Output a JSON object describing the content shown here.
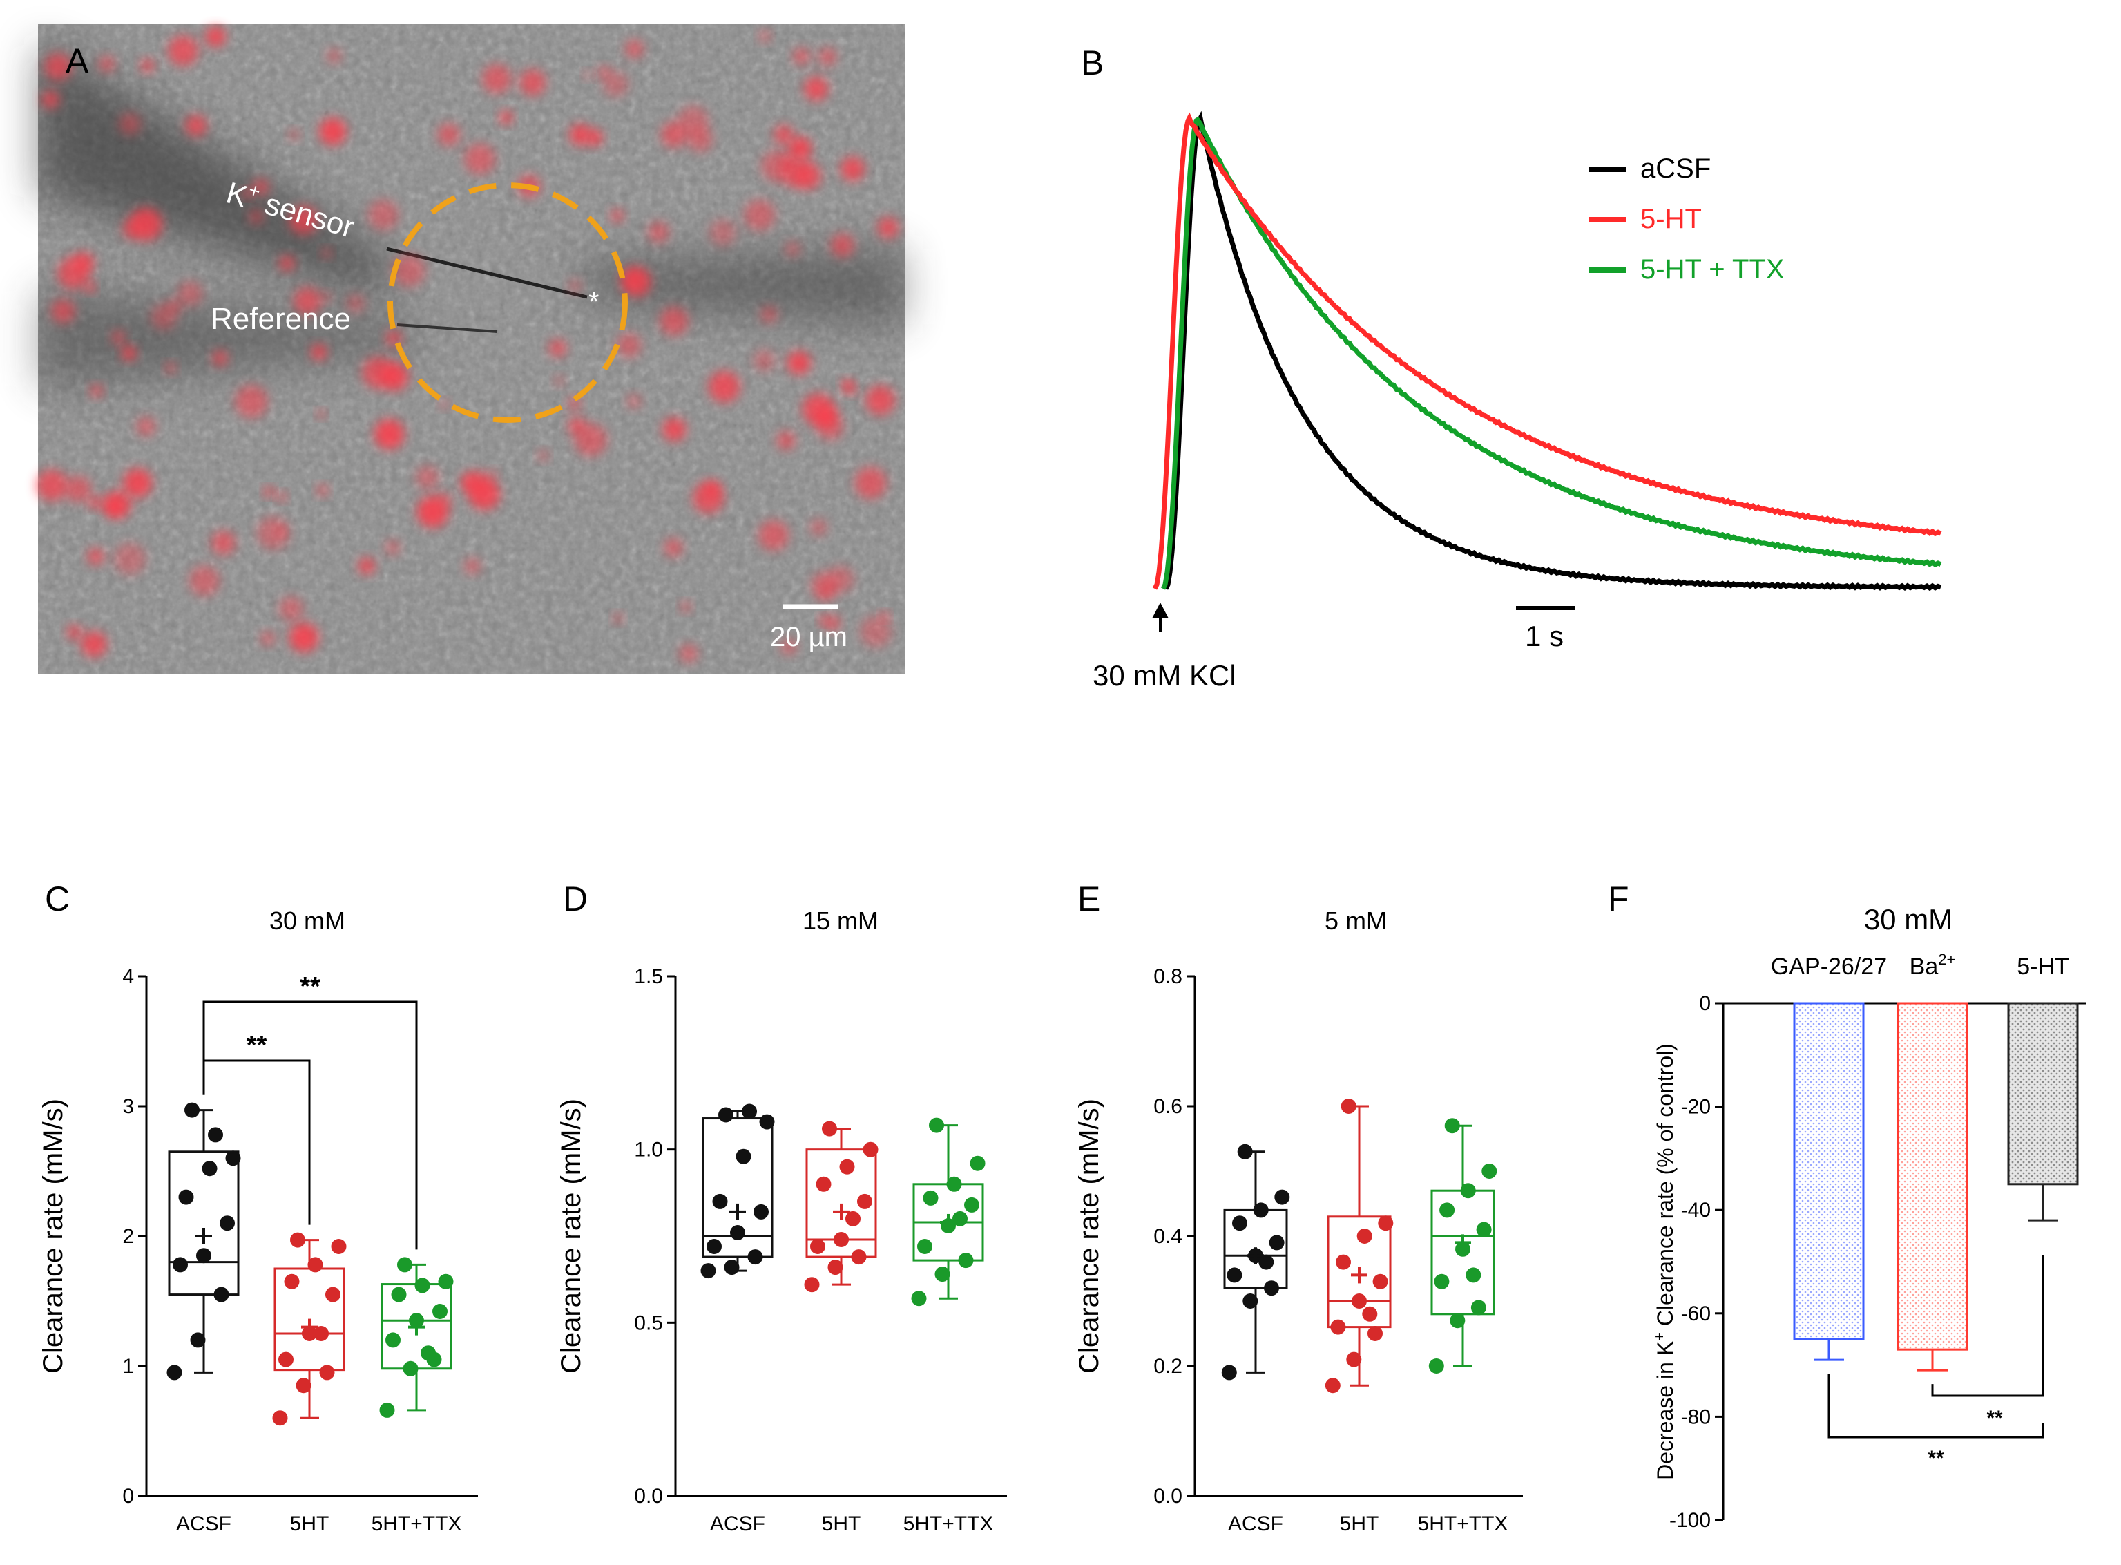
{
  "figure": {
    "panel_a": {
      "label": "A",
      "sensor_label": "K",
      "sensor_label_sup": "+",
      "sensor_label_rest": " sensor",
      "reference_label": "Reference",
      "star_label": "*",
      "scale_bar_label": "20 µm",
      "ring_color": "#f0a21a",
      "cell_color": "#ff3a4a"
    },
    "panel_b": {
      "label": "B",
      "stimulus_label": "30 mM KCl",
      "time_scale_label": "1 s",
      "legend": [
        {
          "name": "aCSF",
          "color": "#000000"
        },
        {
          "name": "5-HT",
          "color": "#ff2a2a"
        },
        {
          "name": "5-HT + TTX",
          "color": "#12a12a"
        }
      ]
    }
  },
  "chart_data": [
    {
      "panel": "C",
      "type": "box",
      "title": "30 mM",
      "ylabel": "Clearance rate (mM/s)",
      "ylim": [
        0,
        4
      ],
      "yticks": [
        "0",
        "1",
        "2",
        "3",
        "4"
      ],
      "categories": [
        "ACSF",
        "5HT",
        "5HT+TTX"
      ],
      "colors": [
        "#111111",
        "#d62a2a",
        "#1a9a2a"
      ],
      "series": [
        {
          "name": "ACSF",
          "min": 0.95,
          "q1": 1.55,
          "median": 1.8,
          "q3": 2.65,
          "max": 2.97,
          "mean": 2.0,
          "points": [
            0.95,
            1.2,
            1.55,
            1.78,
            1.85,
            2.1,
            2.3,
            2.52,
            2.6,
            2.97,
            2.78
          ]
        },
        {
          "name": "5HT",
          "min": 0.6,
          "q1": 0.97,
          "median": 1.25,
          "q3": 1.75,
          "max": 1.97,
          "mean": 1.3,
          "points": [
            0.6,
            0.85,
            0.95,
            1.05,
            1.25,
            1.55,
            1.65,
            1.78,
            1.92,
            1.97,
            1.25
          ]
        },
        {
          "name": "5HT+TTX",
          "min": 0.66,
          "q1": 0.98,
          "median": 1.35,
          "q3": 1.63,
          "max": 1.78,
          "mean": 1.3,
          "points": [
            0.66,
            0.98,
            1.05,
            1.2,
            1.35,
            1.42,
            1.55,
            1.62,
            1.65,
            1.78,
            1.1
          ]
        }
      ],
      "annotations": [
        {
          "from": "ACSF",
          "to": "5HT",
          "label": "**"
        },
        {
          "from": "ACSF",
          "to": "5HT+TTX",
          "label": "**"
        }
      ]
    },
    {
      "panel": "D",
      "type": "box",
      "title": "15 mM",
      "ylabel": "Clearance rate (mM/s)",
      "ylim": [
        0,
        1.5
      ],
      "yticks": [
        "0.0",
        "0.5",
        "1.0",
        "1.5"
      ],
      "categories": [
        "ACSF",
        "5HT",
        "5HT+TTX"
      ],
      "colors": [
        "#111111",
        "#d62a2a",
        "#1a9a2a"
      ],
      "series": [
        {
          "name": "ACSF",
          "min": 0.65,
          "q1": 0.69,
          "median": 0.75,
          "q3": 1.09,
          "max": 1.11,
          "mean": 0.82,
          "points": [
            0.65,
            0.66,
            0.69,
            0.72,
            0.76,
            0.82,
            0.85,
            0.98,
            1.08,
            1.1,
            1.11
          ]
        },
        {
          "name": "5HT",
          "min": 0.61,
          "q1": 0.69,
          "median": 0.74,
          "q3": 1.0,
          "max": 1.06,
          "mean": 0.82,
          "points": [
            0.61,
            0.66,
            0.69,
            0.72,
            0.74,
            0.85,
            0.9,
            0.95,
            1.0,
            1.06,
            0.8
          ]
        },
        {
          "name": "5HT+TTX",
          "min": 0.57,
          "q1": 0.68,
          "median": 0.79,
          "q3": 0.9,
          "max": 1.07,
          "mean": 0.79,
          "points": [
            0.57,
            0.64,
            0.68,
            0.72,
            0.78,
            0.84,
            0.86,
            0.9,
            0.96,
            1.07,
            0.8
          ]
        }
      ],
      "annotations": []
    },
    {
      "panel": "E",
      "type": "box",
      "title": "5 mM",
      "ylabel": "Clearance rate (mM/s)",
      "ylim": [
        0,
        0.8
      ],
      "yticks": [
        "0.0",
        "0.2",
        "0.4",
        "0.6",
        "0.8"
      ],
      "categories": [
        "ACSF",
        "5HT",
        "5HT+TTX"
      ],
      "colors": [
        "#111111",
        "#d62a2a",
        "#1a9a2a"
      ],
      "series": [
        {
          "name": "ACSF",
          "min": 0.19,
          "q1": 0.32,
          "median": 0.37,
          "q3": 0.44,
          "max": 0.53,
          "mean": 0.37,
          "points": [
            0.19,
            0.3,
            0.32,
            0.34,
            0.37,
            0.39,
            0.42,
            0.44,
            0.46,
            0.53,
            0.36
          ]
        },
        {
          "name": "5HT",
          "min": 0.17,
          "q1": 0.26,
          "median": 0.3,
          "q3": 0.43,
          "max": 0.6,
          "mean": 0.34,
          "points": [
            0.17,
            0.21,
            0.25,
            0.26,
            0.3,
            0.33,
            0.36,
            0.4,
            0.42,
            0.6,
            0.28
          ]
        },
        {
          "name": "5HT+TTX",
          "min": 0.2,
          "q1": 0.28,
          "median": 0.4,
          "q3": 0.47,
          "max": 0.57,
          "mean": 0.39,
          "points": [
            0.2,
            0.27,
            0.29,
            0.33,
            0.38,
            0.41,
            0.44,
            0.47,
            0.5,
            0.57,
            0.34
          ]
        }
      ],
      "annotations": []
    },
    {
      "panel": "F",
      "type": "bar",
      "title": "30 mM",
      "ylabel": "Decrease in K",
      "ylabel_sup": "+",
      "ylabel_rest": " Clearance rate (% of control)",
      "ylim": [
        -100,
        0
      ],
      "yticks": [
        "0",
        "-20",
        "-40",
        "-60",
        "-80",
        "-100"
      ],
      "categories": [
        "GAP-26/27",
        "Ba",
        "5-HT"
      ],
      "category_sups": [
        "",
        "2+",
        ""
      ],
      "colors": [
        "#3a5bff",
        "#ff3a30",
        "#222222"
      ],
      "values": [
        -65,
        -67,
        -35
      ],
      "errors": [
        4,
        4,
        7
      ],
      "annotations": [
        {
          "from": "GAP-26/27",
          "to": "5-HT",
          "label": "**"
        },
        {
          "from": "Ba",
          "to": "5-HT",
          "label": "**"
        }
      ]
    }
  ]
}
